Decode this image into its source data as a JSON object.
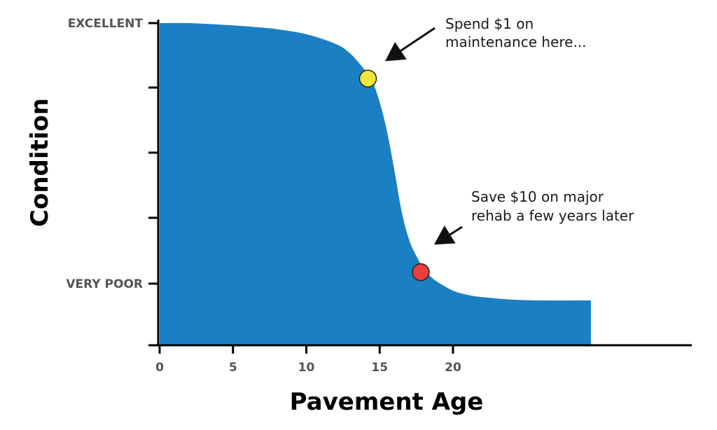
{
  "chart_data": {
    "type": "area",
    "title": "",
    "xlabel": "Pavement Age",
    "ylabel": "Condition",
    "x_ticks": [
      0,
      5,
      10,
      15,
      20
    ],
    "xlim": [
      0,
      36.5
    ],
    "y_scale_labels": {
      "top": "EXCELLENT",
      "bottom": "VERY POOR"
    },
    "ylim": [
      0,
      100
    ],
    "area_color": "#1b7fc4",
    "x": [
      0,
      2,
      4,
      6,
      8,
      10,
      12,
      13,
      14,
      14.5,
      15,
      15.5,
      16,
      16.5,
      17,
      17.5,
      18,
      18.5,
      19,
      20,
      21,
      22,
      24,
      26,
      29.4
    ],
    "y": [
      100,
      100,
      99.5,
      98.8,
      97.8,
      96,
      92.5,
      89,
      83,
      79,
      71.5,
      61,
      47,
      32,
      22,
      16,
      11.5,
      8.5,
      6.5,
      3.5,
      2,
      1.2,
      0.3,
      0,
      0
    ],
    "markers": [
      {
        "x": 14.2,
        "y": 80,
        "color": "#f0e53c",
        "note": [
          "Spend $1 on",
          "maintenance here..."
        ]
      },
      {
        "x": 17.8,
        "y": 10.2,
        "color": "#e8403c",
        "note": [
          "Save $10 on major",
          "rehab a few years later"
        ]
      }
    ]
  }
}
